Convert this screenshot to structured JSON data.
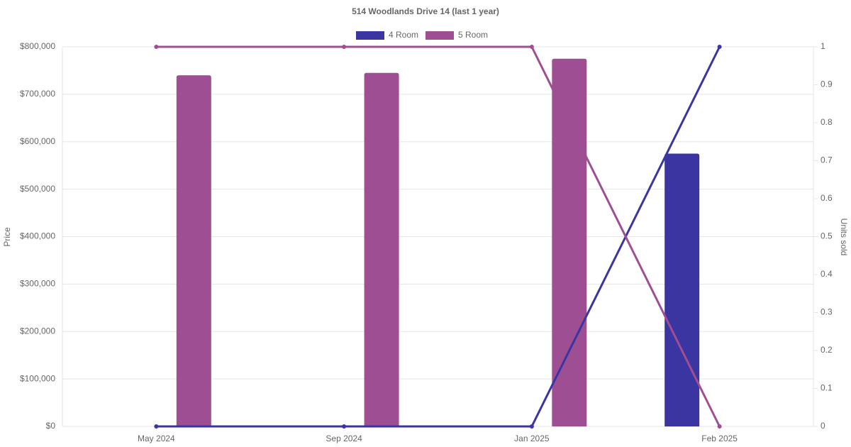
{
  "chart_data": {
    "type": "bar_line",
    "title": "514 Woodlands Drive 14 (last 1 year)",
    "y_label": "Price",
    "y2_label": "Units sold",
    "categories": [
      "May 2024",
      "Sep 2024",
      "Jan 2025",
      "Feb 2025"
    ],
    "series": [
      {
        "name": "4 Room",
        "color": "#3a35a0",
        "values": [
          null,
          null,
          null,
          575000
        ],
        "units_sold": [
          0,
          0,
          0,
          1
        ]
      },
      {
        "name": "5 Room",
        "color": "#9e4f93",
        "values": [
          740000,
          745000,
          775000,
          null
        ],
        "units_sold": [
          1,
          1,
          1,
          0
        ]
      }
    ],
    "ylim": [
      0,
      800000
    ],
    "yticks": [
      {
        "value": 0,
        "label": "$0"
      },
      {
        "value": 100000,
        "label": "$100,000"
      },
      {
        "value": 200000,
        "label": "$200,000"
      },
      {
        "value": 300000,
        "label": "$300,000"
      },
      {
        "value": 400000,
        "label": "$400,000"
      },
      {
        "value": 500000,
        "label": "$500,000"
      },
      {
        "value": 600000,
        "label": "$600,000"
      },
      {
        "value": 700000,
        "label": "$700,000"
      },
      {
        "value": 800000,
        "label": "$800,000"
      }
    ],
    "y2lim": [
      0,
      1
    ],
    "y2ticks": [
      0,
      0.1,
      0.2,
      0.3,
      0.4,
      0.5,
      0.6,
      0.7,
      0.8,
      0.9,
      1
    ],
    "grid": true,
    "legend": "top"
  }
}
